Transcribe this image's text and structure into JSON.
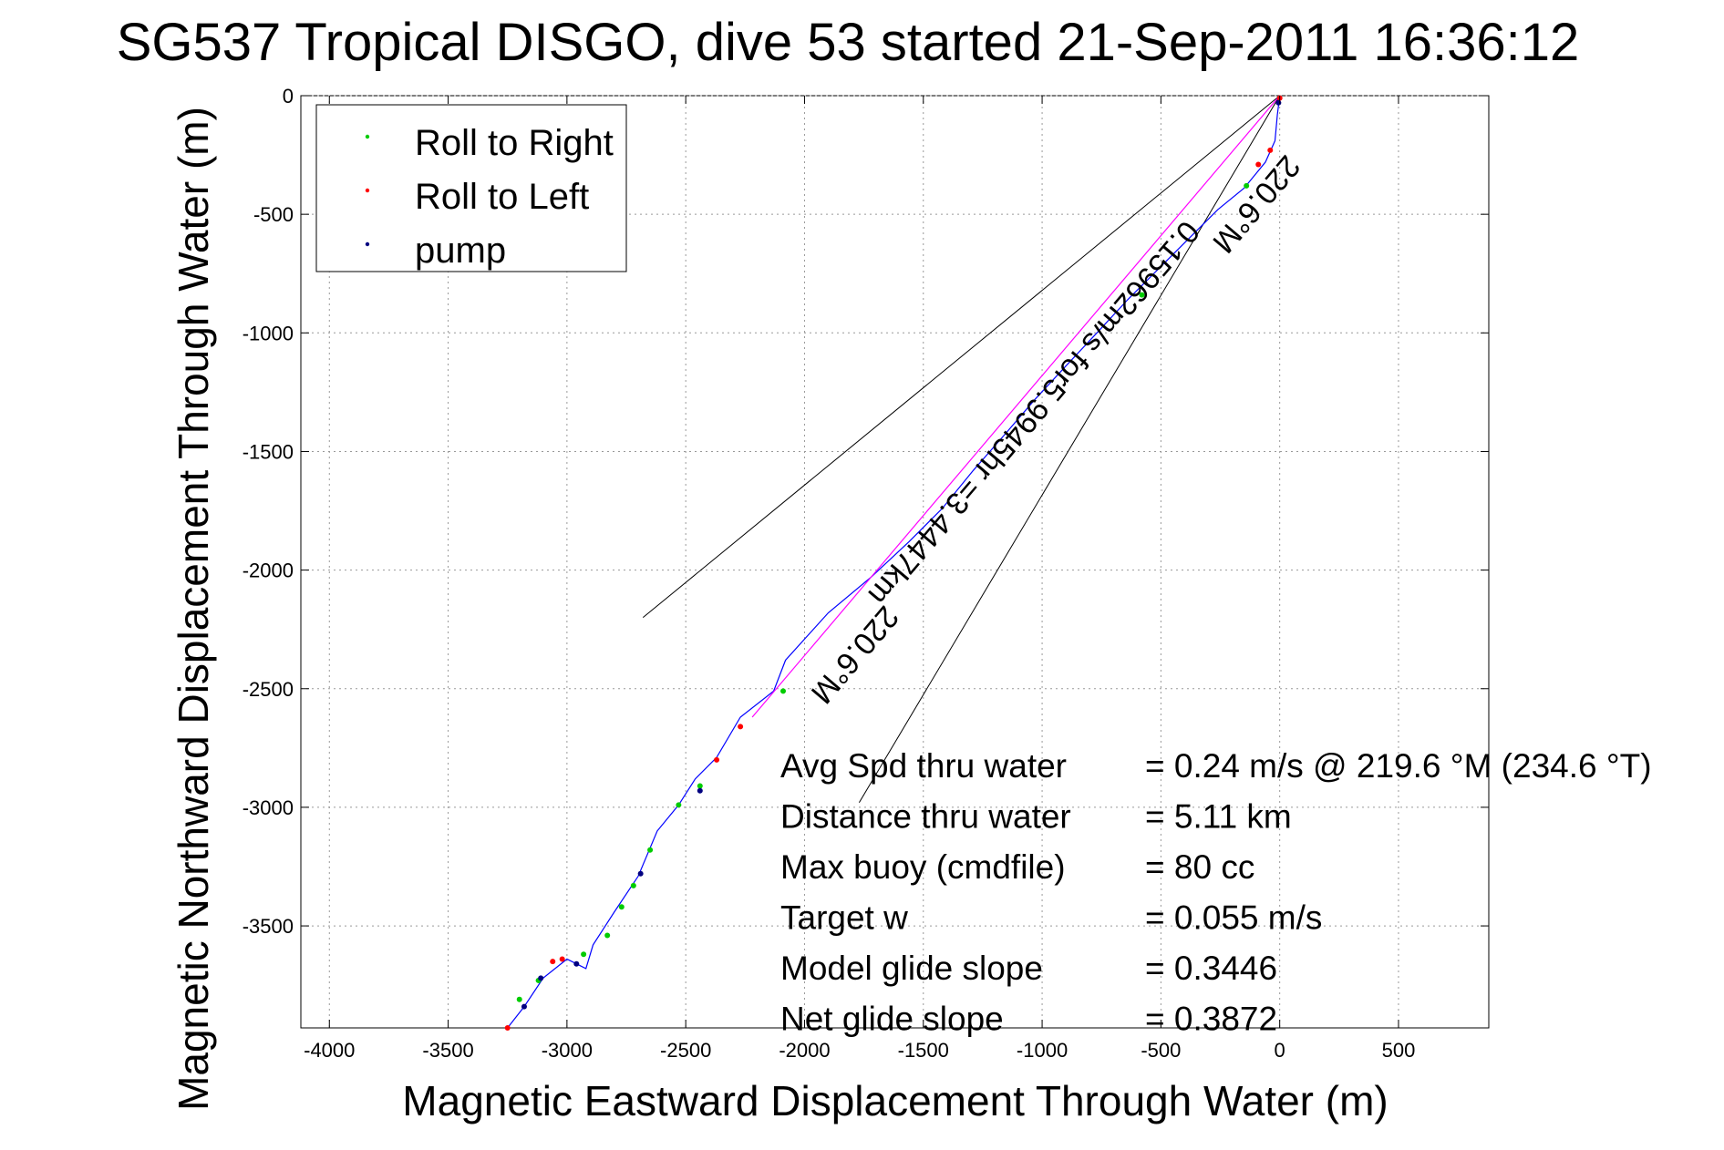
{
  "colors": {
    "roll_right": "#00cc00",
    "roll_left": "#ff0000",
    "pump": "#000080",
    "track": "#0000ff",
    "model_track": "#ff00ff",
    "grid": "#999999",
    "axes": "#000000"
  },
  "chart_data": {
    "type": "line",
    "title": "SG537 Tropical DISGO, dive 53 started 21-Sep-2011 16:36:12",
    "xlabel": "Magnetic Eastward Displacement Through Water (m)",
    "ylabel": "Magnetic Northward Displacement Through Water (m)",
    "xlim": [
      -4120,
      880
    ],
    "ylim": [
      -3930,
      0
    ],
    "x_ticks": [
      -4000,
      -3500,
      -3000,
      -2500,
      -2000,
      -1500,
      -1000,
      -500,
      0,
      500
    ],
    "y_ticks": [
      0,
      -500,
      -1000,
      -1500,
      -2000,
      -2500,
      -3000,
      -3500
    ],
    "grid": true,
    "legend": {
      "placement": "top-left",
      "entries": [
        "Roll to Right",
        "Roll to Left",
        "pump"
      ]
    },
    "series": [
      {
        "name": "track",
        "points": [
          [
            0,
            0
          ],
          [
            -10,
            -80
          ],
          [
            -20,
            -190
          ],
          [
            -60,
            -280
          ],
          [
            -150,
            -390
          ],
          [
            -260,
            -480
          ],
          [
            -380,
            -600
          ],
          [
            -500,
            -720
          ],
          [
            -640,
            -860
          ],
          [
            -760,
            -990
          ],
          [
            -900,
            -1140
          ],
          [
            -1030,
            -1280
          ],
          [
            -1150,
            -1420
          ],
          [
            -1290,
            -1580
          ],
          [
            -1420,
            -1740
          ],
          [
            -1560,
            -1880
          ],
          [
            -1720,
            -2030
          ],
          [
            -1900,
            -2180
          ],
          [
            -2080,
            -2380
          ],
          [
            -2130,
            -2510
          ],
          [
            -2270,
            -2620
          ],
          [
            -2370,
            -2790
          ],
          [
            -2460,
            -2880
          ],
          [
            -2530,
            -2990
          ],
          [
            -2620,
            -3100
          ],
          [
            -2700,
            -3290
          ],
          [
            -2800,
            -3440
          ],
          [
            -2890,
            -3580
          ],
          [
            -2920,
            -3680
          ],
          [
            -3000,
            -3640
          ],
          [
            -3100,
            -3720
          ],
          [
            -3180,
            -3840
          ],
          [
            -3250,
            -3930
          ]
        ]
      },
      {
        "name": "model",
        "points": [
          [
            0,
            0
          ],
          [
            -2220,
            -2620
          ]
        ]
      }
    ],
    "markers": {
      "roll_right": [
        [
          -140,
          -380
        ],
        [
          -580,
          -840
        ],
        [
          -2090,
          -2510
        ],
        [
          -2440,
          -2910
        ],
        [
          -2530,
          -2990
        ],
        [
          -2650,
          -3180
        ],
        [
          -2720,
          -3330
        ],
        [
          -2770,
          -3420
        ],
        [
          -2830,
          -3540
        ],
        [
          -2930,
          -3620
        ],
        [
          -3120,
          -3730
        ],
        [
          -3200,
          -3810
        ]
      ],
      "roll_left": [
        [
          0,
          -10
        ],
        [
          -40,
          -230
        ],
        [
          -90,
          -290
        ],
        [
          -2270,
          -2660
        ],
        [
          -2370,
          -2800
        ],
        [
          -3060,
          -3650
        ],
        [
          -3020,
          -3640
        ],
        [
          -3250,
          -3930
        ]
      ],
      "pump": [
        [
          -5,
          -30
        ],
        [
          -2440,
          -2930
        ],
        [
          -2690,
          -3280
        ],
        [
          -2960,
          -3660
        ],
        [
          -3110,
          -3720
        ],
        [
          -3180,
          -3840
        ]
      ]
    },
    "annotations": {
      "arrow_label_1": "0.15962m/s for5.9945hr =3.4447km",
      "arrow_label_2": "220.6°M",
      "arrow_label_3": "220.6°M",
      "rays": [
        {
          "from": [
            0,
            0
          ],
          "to": [
            -2680,
            -2200
          ]
        },
        {
          "from": [
            0,
            0
          ],
          "to": [
            -1770,
            -2980
          ]
        }
      ]
    },
    "stats": [
      {
        "label": "Avg Spd thru water",
        "value": "=  0.24 m/s @ 219.6 °M (234.6 °T)"
      },
      {
        "label": "Distance thru water",
        "value": "=  5.11 km"
      },
      {
        "label": "Max buoy (cmdfile)",
        "value": "= 80 cc"
      },
      {
        "label": "Target w",
        "value": "= 0.055 m/s"
      },
      {
        "label": "Model glide slope",
        "value": "= 0.3446"
      },
      {
        "label": "Net glide slope",
        "value": "= 0.3872"
      }
    ]
  }
}
